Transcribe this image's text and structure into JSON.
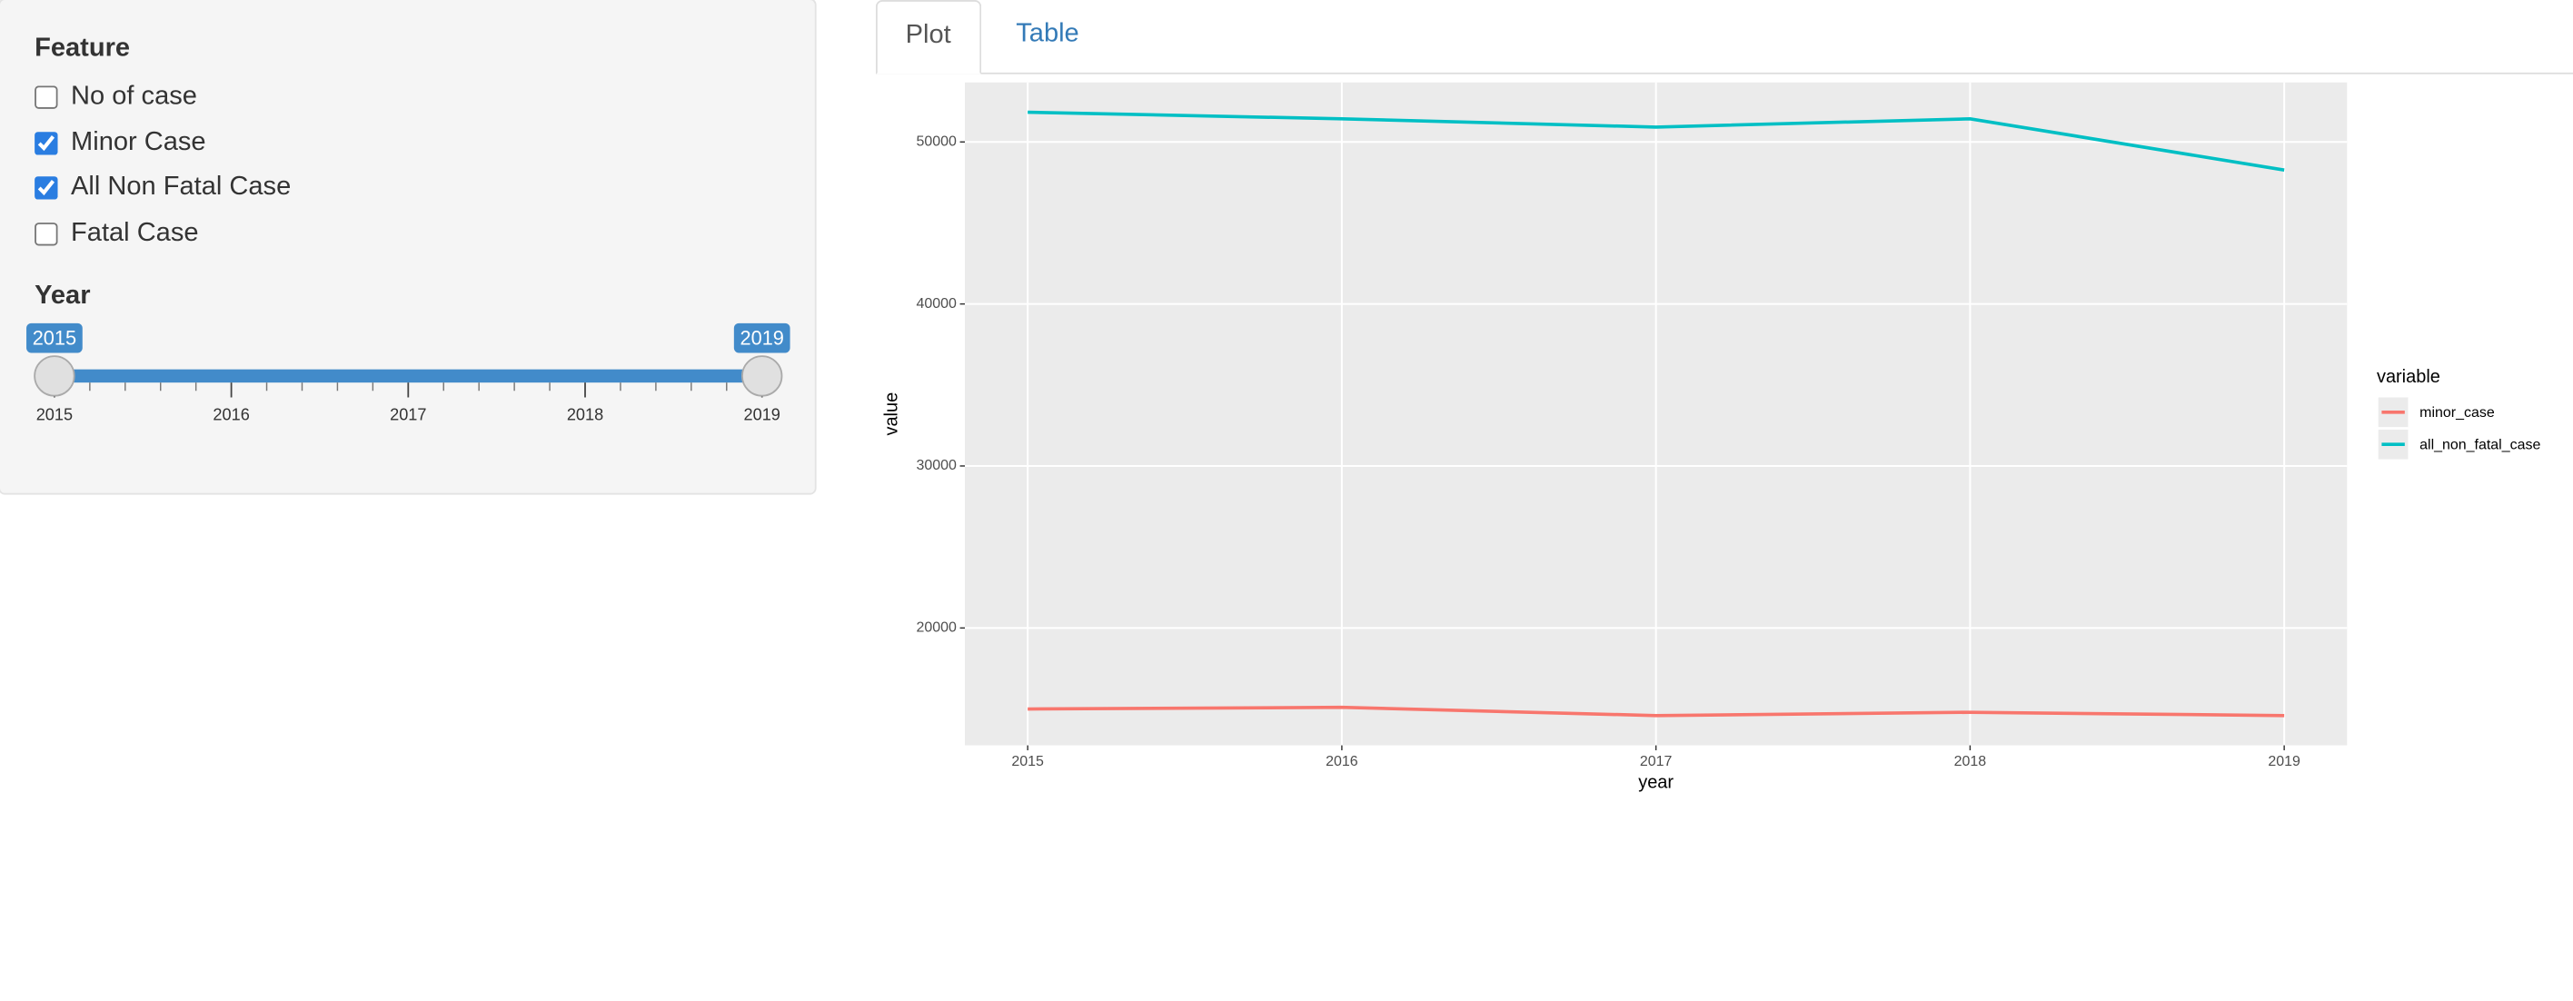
{
  "sidebar": {
    "feature_title": "Feature",
    "options": [
      {
        "label": "No of case",
        "checked": false
      },
      {
        "label": "Minor Case",
        "checked": true
      },
      {
        "label": "All Non Fatal Case",
        "checked": true
      },
      {
        "label": "Fatal Case",
        "checked": false
      }
    ],
    "year_title": "Year",
    "slider": {
      "min": 2015,
      "max": 2019,
      "from": 2015,
      "to": 2019,
      "ticks": [
        2015,
        2016,
        2017,
        2018,
        2019
      ]
    }
  },
  "tabs": [
    {
      "label": "Plot",
      "active": true
    },
    {
      "label": "Table",
      "active": false
    }
  ],
  "chart_data": {
    "type": "line",
    "x_label": "year",
    "y_label": "value",
    "legend_title": "variable",
    "x": [
      2015,
      2016,
      2017,
      2018,
      2019
    ],
    "series": [
      {
        "name": "minor_case",
        "color": "#F8766D",
        "values": [
          15000,
          15100,
          14592,
          14796,
          14592
        ]
      },
      {
        "name": "all_non_fatal_case",
        "color": "#00BFC4",
        "values": [
          51837,
          51429,
          50918,
          51429,
          48265
        ]
      }
    ],
    "xlim": [
      2014.8,
      2019.2
    ],
    "xticks": [
      2015,
      2016,
      2017,
      2018,
      2019
    ],
    "ylim": [
      12755,
      53673
    ],
    "yticks": [
      20000,
      30000,
      40000,
      50000
    ],
    "grid": true
  }
}
